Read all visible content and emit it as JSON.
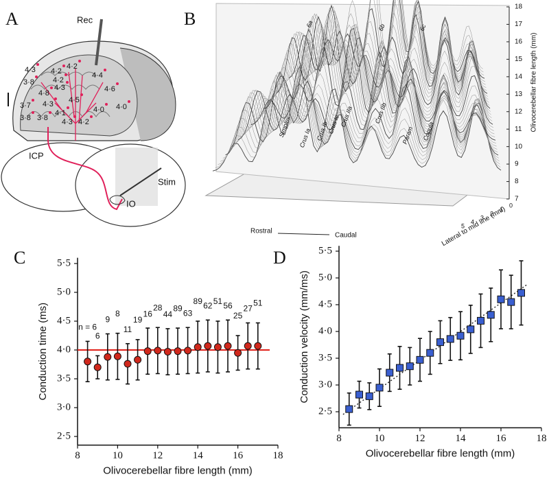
{
  "panel_labels": [
    "A",
    "B",
    "C",
    "D"
  ],
  "panel_a": {
    "rec": "Rec",
    "icp": "ICP",
    "stim": "Stim",
    "io": "IO",
    "site_values": [
      "4·3",
      "4·2",
      "4·2",
      "4·4",
      "3·8",
      "4·2",
      "4·8",
      "4·3",
      "4·6",
      "3·7",
      "4·3",
      "4·5",
      "4·0",
      "4·0",
      "3·8",
      "3·8",
      "4·1",
      "4·3",
      "4·2"
    ]
  },
  "panel_b": {
    "z_title": "Olivocerebellar fibre length (mm)",
    "z_ticks": [
      7,
      8,
      9,
      10,
      11,
      12,
      13,
      14,
      15,
      16,
      17,
      18
    ],
    "rostral": "Rostral",
    "caudal": "Caudal",
    "lateral_title": "Lateral to mid line (mm)",
    "lateral_ticks": [
      0,
      1,
      2,
      3,
      4,
      5
    ],
    "lobules": [
      "Simplex",
      "Crus Ia",
      "Crus Ib",
      "Crus Ic",
      "Crus IIa",
      "Crus IIb",
      "Param",
      "Copula",
      "6a",
      "6b",
      "6c"
    ]
  },
  "chart_data": [
    {
      "type": "scatter",
      "marker": "circle",
      "color": "#d0281c",
      "x_label": "Olivocerebellar fibre length (mm)",
      "y_label": "Conduction time (ms)",
      "x": [
        8.5,
        9,
        9.5,
        10,
        10.5,
        11,
        11.5,
        12,
        12.5,
        13,
        13.5,
        14,
        14.5,
        15,
        15.5,
        16,
        16.5,
        17
      ],
      "values": [
        3.8,
        3.7,
        3.88,
        3.89,
        3.76,
        3.83,
        3.98,
        3.99,
        3.97,
        3.98,
        3.99,
        4.05,
        4.07,
        4.05,
        4.07,
        3.95,
        4.07,
        4.07
      ],
      "errors": [
        0.35,
        0.2,
        0.4,
        0.4,
        0.35,
        0.35,
        0.4,
        0.4,
        0.4,
        0.4,
        0.4,
        0.45,
        0.45,
        0.45,
        0.45,
        0.3,
        0.4,
        0.4
      ],
      "annotations": [
        "n = 6",
        "6",
        "9",
        "8",
        "11",
        "19",
        "16",
        "28",
        "44",
        "89",
        "63",
        "89",
        "62",
        "51",
        "56",
        "25",
        "27",
        "51"
      ],
      "reference_line": 4,
      "reference_color": "#e0201a",
      "xlim": [
        8,
        18
      ],
      "ylim": [
        2.35,
        5.6
      ],
      "xticks": [
        8,
        10,
        12,
        14,
        16,
        18
      ],
      "yticks": [
        {
          "value": 2.5,
          "label": "2·5"
        },
        {
          "value": 3,
          "label": "3·0"
        },
        {
          "value": 3.5,
          "label": "3·5"
        },
        {
          "value": 4,
          "label": "4·0"
        },
        {
          "value": 4.5,
          "label": "4·5"
        },
        {
          "value": 5,
          "label": "5·0"
        },
        {
          "value": 5.5,
          "label": "5·5"
        }
      ]
    },
    {
      "type": "scatter",
      "marker": "square",
      "color": "#3a5fd0",
      "x_label": "Olivocerebellar fibre length (mm)",
      "y_label": "Conduction velocity (mm/ms)",
      "x": [
        8.5,
        9,
        9.5,
        10,
        10.5,
        11,
        11.5,
        12,
        12.5,
        13,
        13.5,
        14,
        14.5,
        15,
        15.5,
        16,
        16.5,
        17
      ],
      "values": [
        2.55,
        2.82,
        2.79,
        2.95,
        3.23,
        3.32,
        3.35,
        3.47,
        3.6,
        3.8,
        3.86,
        3.92,
        4.04,
        4.2,
        4.31,
        4.6,
        4.55,
        4.72
      ],
      "errors": [
        0.3,
        0.25,
        0.25,
        0.35,
        0.35,
        0.4,
        0.35,
        0.4,
        0.4,
        0.4,
        0.4,
        0.45,
        0.45,
        0.5,
        0.5,
        0.55,
        0.5,
        0.6
      ],
      "fit": {
        "x": [
          8.2,
          17.3
        ],
        "values": [
          2.45,
          4.88
        ]
      },
      "xlim": [
        8,
        18
      ],
      "ylim": [
        2.2,
        5.6
      ],
      "xticks": [
        8,
        10,
        12,
        14,
        16,
        18
      ],
      "yticks": [
        {
          "value": 2.5,
          "label": "2·5"
        },
        {
          "value": 3,
          "label": "3·0"
        },
        {
          "value": 3.5,
          "label": "3·5"
        },
        {
          "value": 4,
          "label": "4·0"
        },
        {
          "value": 4.5,
          "label": "4·5"
        },
        {
          "value": 5,
          "label": "5·0"
        },
        {
          "value": 5.5,
          "label": "5·5"
        }
      ]
    }
  ]
}
